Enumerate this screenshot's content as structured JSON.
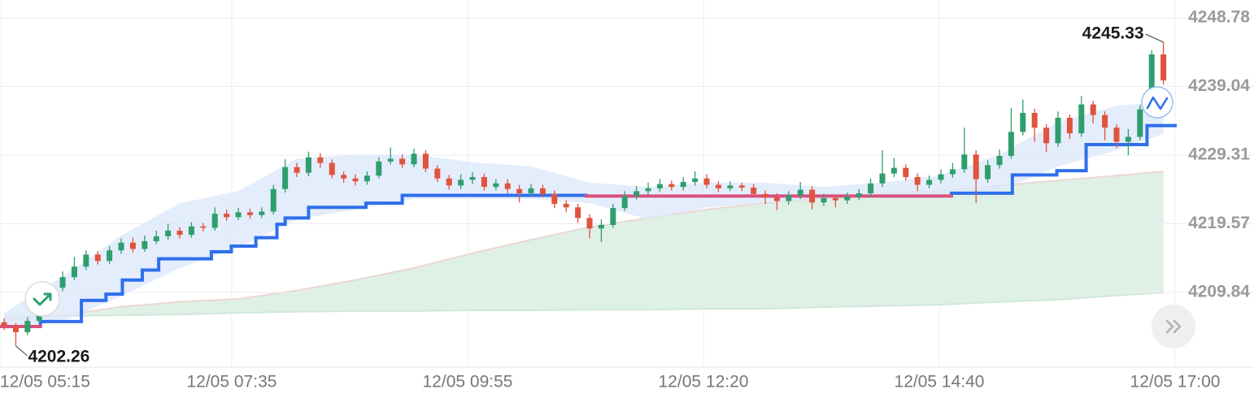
{
  "chart_data": {
    "type": "candlestick",
    "up_color": "#2f9e6e",
    "down_color": "#e0533d",
    "grid": true,
    "ylim": [
      4199.24,
      4251.31
    ],
    "yticks": [
      4209.84,
      4219.57,
      4229.31,
      4239.04,
      4248.78
    ],
    "xlim": [
      -0.35,
      100
    ],
    "xticks": [
      {
        "value": -0.35,
        "label": "12/05 05:15"
      },
      {
        "value": 19.44,
        "label": "12/05 07:35"
      },
      {
        "value": 39.58,
        "label": "12/05 09:55"
      },
      {
        "value": 59.72,
        "label": "12/05 12:20"
      },
      {
        "value": 79.86,
        "label": "12/05 14:40"
      },
      {
        "value": 100,
        "label": "12/05 17:00"
      }
    ],
    "candles": {
      "open": [
        4205.6,
        4205.0,
        4204.2,
        4205.8,
        4207.5,
        4210.5,
        4212.0,
        4213.5,
        4215.2,
        4214.3,
        4215.8,
        4216.9,
        4216.0,
        4217.1,
        4217.8,
        4218.6,
        4218.0,
        4219.2,
        4219.0,
        4221.0,
        4220.5,
        4221.2,
        4220.8,
        4221.3,
        4224.5,
        4227.6,
        4226.8,
        4229.0,
        4228.2,
        4226.5,
        4226.0,
        4225.6,
        4226.4,
        4228.4,
        4228.8,
        4228.0,
        4229.5,
        4227.4,
        4226.0,
        4225.0,
        4225.8,
        4226.2,
        4224.8,
        4225.3,
        4224.5,
        4223.9,
        4224.6,
        4223.8,
        4222.4,
        4221.9,
        4220.4,
        4218.9,
        4219.4,
        4221.8,
        4223.5,
        4224.2,
        4224.6,
        4225.2,
        4224.8,
        4225.5,
        4226.0,
        4225.1,
        4224.6,
        4225.0,
        4224.7,
        4223.8,
        4223.3,
        4222.8,
        4223.6,
        4224.4,
        4222.6,
        4223.2,
        4222.9,
        4223.4,
        4223.9,
        4225.3,
        4226.7,
        4227.5,
        4226.2,
        4225.1,
        4225.8,
        4226.6,
        4227.3,
        4229.4,
        4225.9,
        4227.9,
        4229.2,
        4232.6,
        4235.3,
        4233.2,
        4231.0,
        4234.6,
        4232.4,
        4236.5,
        4235.0,
        4233.2,
        4231.2,
        4231.9,
        4235.8,
        4243.6
      ],
      "high": [
        4206.2,
        4205.5,
        4206.3,
        4208.0,
        4211.1,
        4212.8,
        4214.9,
        4215.8,
        4215.7,
        4216.4,
        4217.5,
        4217.6,
        4217.9,
        4218.6,
        4219.6,
        4219.1,
        4219.8,
        4219.7,
        4221.9,
        4221.6,
        4221.8,
        4221.7,
        4221.9,
        4225.1,
        4228.7,
        4228.2,
        4229.8,
        4229.6,
        4228.7,
        4227.0,
        4226.6,
        4227.0,
        4229.0,
        4230.4,
        4229.4,
        4230.2,
        4230.0,
        4227.9,
        4226.5,
        4226.6,
        4226.9,
        4226.7,
        4225.9,
        4225.9,
        4225.1,
        4225.2,
        4225.1,
        4224.3,
        4222.9,
        4222.4,
        4220.9,
        4220.2,
        4222.4,
        4224.2,
        4224.9,
        4225.4,
        4225.9,
        4225.7,
        4226.2,
        4227.0,
        4226.6,
        4225.6,
        4225.6,
        4225.4,
        4225.2,
        4224.3,
        4223.9,
        4224.2,
        4225.5,
        4224.9,
        4223.8,
        4223.7,
        4224.0,
        4224.5,
        4226.0,
        4230.0,
        4228.9,
        4228.0,
        4226.7,
        4226.4,
        4227.3,
        4228.2,
        4233.2,
        4230.0,
        4228.6,
        4230.1,
        4236.0,
        4237.2,
        4235.9,
        4233.7,
        4235.5,
        4235.1,
        4237.7,
        4237.0,
        4235.5,
        4233.7,
        4233.0,
        4236.4,
        4244.2,
        4245.33
      ],
      "low": [
        4204.5,
        4202.26,
        4203.8,
        4205.4,
        4207.0,
        4210.0,
        4211.6,
        4213.0,
        4213.8,
        4213.9,
        4215.3,
        4215.5,
        4215.6,
        4216.7,
        4217.3,
        4217.5,
        4217.6,
        4218.5,
        4218.6,
        4220.0,
        4220.1,
        4220.3,
        4220.4,
        4220.9,
        4224.0,
        4226.2,
        4226.3,
        4227.5,
        4226.0,
        4225.4,
        4225.0,
        4225.1,
        4226.0,
        4228.0,
        4227.5,
        4227.6,
        4226.9,
        4225.5,
        4224.4,
        4224.5,
        4225.2,
        4224.3,
        4224.3,
        4223.9,
        4222.6,
        4223.4,
        4223.3,
        4221.8,
        4221.2,
        4219.7,
        4217.5,
        4217.0,
        4219.0,
        4221.4,
        4223.0,
        4223.7,
        4224.1,
        4224.3,
        4224.3,
        4225.0,
        4224.6,
        4224.1,
        4224.2,
        4224.2,
        4223.3,
        4222.4,
        4221.5,
        4222.3,
        4223.1,
        4221.6,
        4222.1,
        4221.9,
        4222.4,
        4222.9,
        4223.4,
        4224.8,
        4226.2,
        4225.7,
        4224.2,
        4224.6,
        4225.3,
        4226.1,
        4226.8,
        4222.5,
        4225.4,
        4227.4,
        4228.8,
        4232.1,
        4231.2,
        4229.8,
        4230.5,
        4231.6,
        4231.9,
        4233.8,
        4231.4,
        4230.3,
        4229.3,
        4231.4,
        4235.3,
        4239.3
      ],
      "close": [
        4205.0,
        4204.2,
        4205.8,
        4207.5,
        4210.5,
        4212.0,
        4213.5,
        4215.2,
        4214.3,
        4215.8,
        4216.9,
        4216.0,
        4217.1,
        4217.8,
        4218.6,
        4218.0,
        4219.2,
        4219.0,
        4221.0,
        4220.5,
        4221.2,
        4220.8,
        4221.3,
        4224.5,
        4227.6,
        4226.8,
        4229.0,
        4228.2,
        4226.5,
        4226.0,
        4225.6,
        4226.4,
        4228.4,
        4228.8,
        4228.0,
        4229.5,
        4227.4,
        4226.0,
        4225.0,
        4225.8,
        4226.2,
        4224.8,
        4225.3,
        4224.5,
        4223.9,
        4224.6,
        4223.8,
        4222.4,
        4221.9,
        4220.4,
        4218.9,
        4219.4,
        4221.8,
        4223.5,
        4224.2,
        4224.6,
        4225.2,
        4224.8,
        4225.5,
        4226.0,
        4225.1,
        4224.6,
        4225.0,
        4224.7,
        4223.8,
        4223.3,
        4222.8,
        4223.6,
        4224.4,
        4222.6,
        4223.2,
        4222.9,
        4223.4,
        4223.9,
        4225.3,
        4226.7,
        4227.5,
        4226.2,
        4225.1,
        4225.8,
        4226.6,
        4227.3,
        4229.4,
        4225.9,
        4227.9,
        4229.2,
        4232.6,
        4235.3,
        4233.2,
        4231.0,
        4234.6,
        4232.4,
        4236.5,
        4235.0,
        4233.2,
        4231.2,
        4231.9,
        4235.8,
        4243.6,
        4239.9
      ]
    },
    "band": {
      "color": "#dde9fb",
      "x": [
        0,
        5,
        10,
        15,
        20,
        25,
        30,
        35,
        40,
        45,
        50,
        55,
        60,
        65,
        70,
        75,
        80,
        85,
        90,
        95,
        99
      ],
      "upper": [
        4206.9,
        4212.1,
        4217.9,
        4222.5,
        4224.2,
        4228.8,
        4229.4,
        4229.4,
        4228.3,
        4227.7,
        4225.4,
        4224.8,
        4225.4,
        4225.4,
        4224.8,
        4225.4,
        4226.5,
        4229.4,
        4234.0,
        4236.3,
        4236.9
      ],
      "lower": [
        4204.6,
        4205.8,
        4209.3,
        4213.3,
        4216.2,
        4220.2,
        4221.6,
        4223.1,
        4223.1,
        4223.1,
        4222.5,
        4220.2,
        4221.9,
        4222.5,
        4223.1,
        4223.7,
        4223.7,
        4224.2,
        4227.7,
        4230.0,
        4232.3
      ]
    },
    "ma": {
      "fill": "#dff1e6",
      "x": [
        0,
        5,
        10,
        15,
        20,
        25,
        30,
        35,
        40,
        45,
        50,
        55,
        60,
        65,
        70,
        75,
        80,
        85,
        90,
        95,
        99
      ],
      "series": [
        {
          "color": "#ead7d3",
          "values": [
            4205.8,
            4206.6,
            4207.8,
            4208.5,
            4208.9,
            4210.1,
            4211.6,
            4213.3,
            4215.4,
            4217.3,
            4219.1,
            4220.4,
            4221.6,
            4222.5,
            4223.2,
            4223.9,
            4224.3,
            4225.0,
            4225.7,
            4226.4,
            4227.0
          ]
        },
        {
          "color": "#cfe8d8",
          "values": [
            4206.4,
            4206.5,
            4206.6,
            4206.7,
            4206.95,
            4207.1,
            4207.2,
            4207.2,
            4207.3,
            4207.3,
            4207.4,
            4207.4,
            4207.5,
            4207.5,
            4207.76,
            4207.9,
            4208.1,
            4208.5,
            4208.8,
            4209.4,
            4209.8
          ]
        }
      ]
    },
    "trend": {
      "x": [
        -0.35,
        3.1,
        6.6,
        8.7,
        10.1,
        11.8,
        13.2,
        17.7,
        19.4,
        21.5,
        23.3,
        24.0,
        26.0,
        30.9,
        34.0,
        49.7,
        80.9,
        86.1,
        89.9,
        92.4,
        97.6,
        100
      ],
      "series": [
        {
          "color": "#2f6fec",
          "values": [
            null,
            4205.7,
            4208.7,
            4209.6,
            4211.6,
            4213.0,
            4214.6,
            4215.6,
            4216.4,
            4217.6,
            4219.5,
            4220.4,
            4221.9,
            4222.5,
            4223.6,
            null,
            4223.9,
            4226.5,
            4227.1,
            4230.8,
            4233.5,
            null
          ]
        },
        {
          "color": "#d9507e",
          "values": [
            4205.0,
            null,
            null,
            null,
            null,
            null,
            null,
            null,
            null,
            null,
            null,
            null,
            null,
            null,
            null,
            4223.5,
            null,
            null,
            null,
            null,
            null,
            null
          ]
        }
      ]
    }
  }
}
